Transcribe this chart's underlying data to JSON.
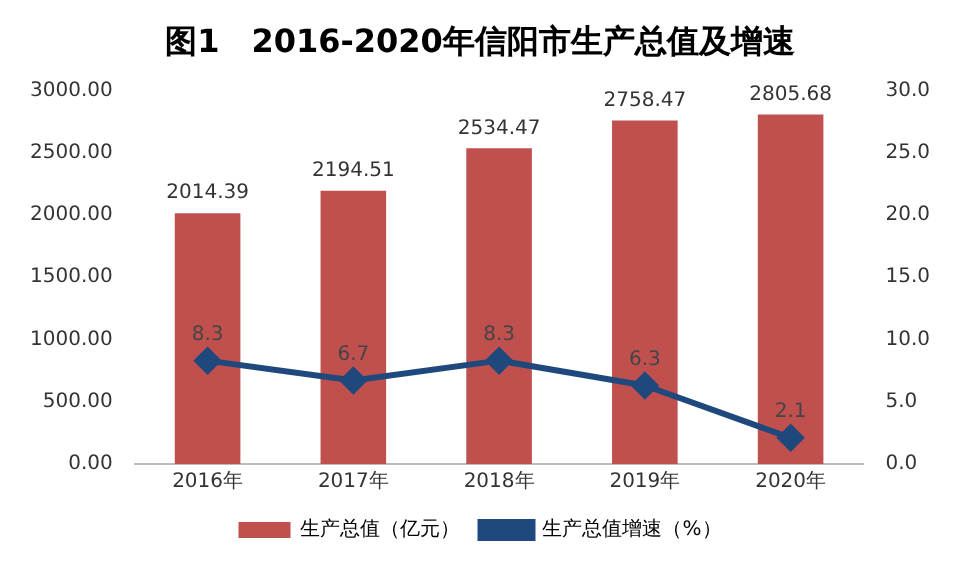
{
  "chart_data": {
    "type": "bar",
    "title": "图1　2016-2020年信阳市生产总值及增速",
    "categories": [
      "2016年",
      "2017年",
      "2018年",
      "2019年",
      "2020年"
    ],
    "series": [
      {
        "name": "生产总值（亿元）",
        "color": "#c0504d",
        "values": [
          2014.39,
          2194.51,
          2534.47,
          2758.47,
          2805.68
        ]
      },
      {
        "name": "生产总值增速（%）",
        "type": "line",
        "axis": "y2",
        "color": "#1f497d",
        "marker": "diamond",
        "values": [
          8.3,
          6.7,
          8.3,
          6.3,
          2.1
        ]
      }
    ],
    "ylim": [
      0,
      3000
    ],
    "yticks": [
      {
        "value": 0,
        "label": "0.00"
      },
      {
        "value": 500,
        "label": "500.00"
      },
      {
        "value": 1000,
        "label": "1000.00"
      },
      {
        "value": 1500,
        "label": "1500.00"
      },
      {
        "value": 2000,
        "label": "2000.00"
      },
      {
        "value": 2500,
        "label": "2500.00"
      },
      {
        "value": 3000,
        "label": "3000.00"
      }
    ],
    "y2lim": [
      0,
      30
    ],
    "y2ticks": [
      {
        "value": 0,
        "label": "0.0"
      },
      {
        "value": 5,
        "label": "5.0"
      },
      {
        "value": 10,
        "label": "10.0"
      },
      {
        "value": 15,
        "label": "15.0"
      },
      {
        "value": 20,
        "label": "20.0"
      },
      {
        "value": 25,
        "label": "25.0"
      },
      {
        "value": 30,
        "label": "30.0"
      }
    ],
    "data_labels": true,
    "grid": false,
    "legend": "bottom"
  }
}
